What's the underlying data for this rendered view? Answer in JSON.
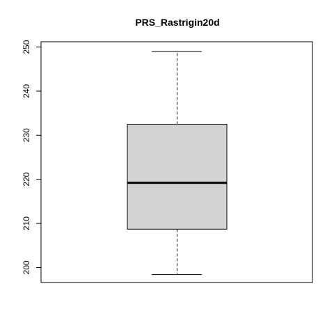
{
  "chart_data": {
    "type": "boxplot",
    "title": "PRS_Rastrigin20d",
    "xlabel": "",
    "ylabel": "",
    "ylim": [
      196.6,
      251.2
    ],
    "yticks": [
      200,
      210,
      220,
      230,
      240,
      250
    ],
    "grid": false,
    "box": {
      "whisker_low": 198.4,
      "q1": 208.7,
      "median": 219.2,
      "q3": 232.5,
      "whisker_high": 249.0
    },
    "colors": {
      "box_fill": "#d3d3d3",
      "stroke": "#000000"
    }
  }
}
